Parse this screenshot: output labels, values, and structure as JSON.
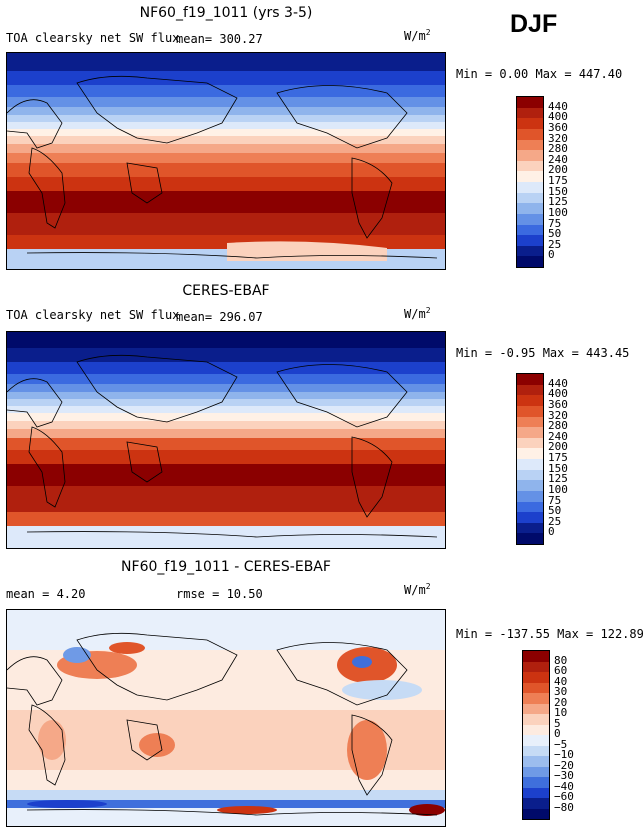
{
  "season": "DJF",
  "panels": [
    {
      "title": "NF60_f19_1011 (yrs 3-5)",
      "left_label": "TOA clearsky net SW flux",
      "stat_label": "mean= 300.27",
      "unit_text": "W/m",
      "unit_exp": "2",
      "minmax": "Min =   0.00 Max = 447.40",
      "levels": [
        "440",
        "400",
        "360",
        "320",
        "280",
        "240",
        "200",
        "175",
        "150",
        "125",
        "100",
        "75",
        "50",
        "25",
        "0"
      ],
      "colors": [
        "#8b0000",
        "#b0200e",
        "#cc3311",
        "#e0552a",
        "#ee7f55",
        "#f5a888",
        "#fbd2bd",
        "#fff1e6",
        "#dde9fa",
        "#b9d2f4",
        "#8fb4ec",
        "#6491e6",
        "#3b6ae0",
        "#1c40cc",
        "#0a1e8c",
        "#000a6a"
      ]
    },
    {
      "title": "CERES-EBAF",
      "left_label": "TOA clearsky net SW flux",
      "stat_label": "mean= 296.07",
      "unit_text": "W/m",
      "unit_exp": "2",
      "minmax": "Min =  -0.95 Max = 443.45",
      "levels": [
        "440",
        "400",
        "360",
        "320",
        "280",
        "240",
        "200",
        "175",
        "150",
        "125",
        "100",
        "75",
        "50",
        "25",
        "0"
      ],
      "colors": [
        "#8b0000",
        "#b0200e",
        "#cc3311",
        "#e0552a",
        "#ee7f55",
        "#f5a888",
        "#fbd2bd",
        "#fff1e6",
        "#dde9fa",
        "#b9d2f4",
        "#8fb4ec",
        "#6491e6",
        "#3b6ae0",
        "#1c40cc",
        "#0a1e8c",
        "#000a6a"
      ]
    },
    {
      "title": "NF60_f19_1011 - CERES-EBAF",
      "left_label": "mean =    4.20",
      "stat_label": "rmse =   10.50",
      "unit_text": "W/m",
      "unit_exp": "2",
      "minmax": "Min = -137.55 Max = 122.89",
      "levels": [
        "80",
        "60",
        "40",
        "30",
        "20",
        "10",
        "5",
        "0",
        "−5",
        "−10",
        "−20",
        "−30",
        "−40",
        "−60",
        "−80"
      ],
      "colors": [
        "#8b0000",
        "#b0200e",
        "#cc3311",
        "#e0552a",
        "#ee7f55",
        "#f5a888",
        "#fbd2bd",
        "#fdebe0",
        "#e8f0fb",
        "#c6dbf5",
        "#9cbdee",
        "#6f9ae6",
        "#3f6fdc",
        "#1c40cc",
        "#0a1e8c",
        "#000a6a"
      ]
    }
  ],
  "chart_data": [
    {
      "type": "heatmap",
      "title": "NF60_f19_1011 (yrs 3-5)",
      "variable": "TOA clearsky net SW flux",
      "units": "W/m2",
      "mean": 300.27,
      "min": 0.0,
      "max": 447.4,
      "contour_levels": [
        0,
        25,
        50,
        75,
        100,
        125,
        150,
        175,
        200,
        240,
        280,
        320,
        360,
        400,
        440
      ]
    },
    {
      "type": "heatmap",
      "title": "CERES-EBAF",
      "variable": "TOA clearsky net SW flux",
      "units": "W/m2",
      "mean": 296.07,
      "min": -0.95,
      "max": 443.45,
      "contour_levels": [
        0,
        25,
        50,
        75,
        100,
        125,
        150,
        175,
        200,
        240,
        280,
        320,
        360,
        400,
        440
      ]
    },
    {
      "type": "heatmap",
      "title": "NF60_f19_1011 - CERES-EBAF",
      "units": "W/m2",
      "mean": 4.2,
      "rmse": 10.5,
      "min": -137.55,
      "max": 122.89,
      "contour_levels": [
        -80,
        -60,
        -40,
        -30,
        -20,
        -10,
        -5,
        0,
        5,
        10,
        20,
        30,
        40,
        60,
        80
      ]
    }
  ]
}
